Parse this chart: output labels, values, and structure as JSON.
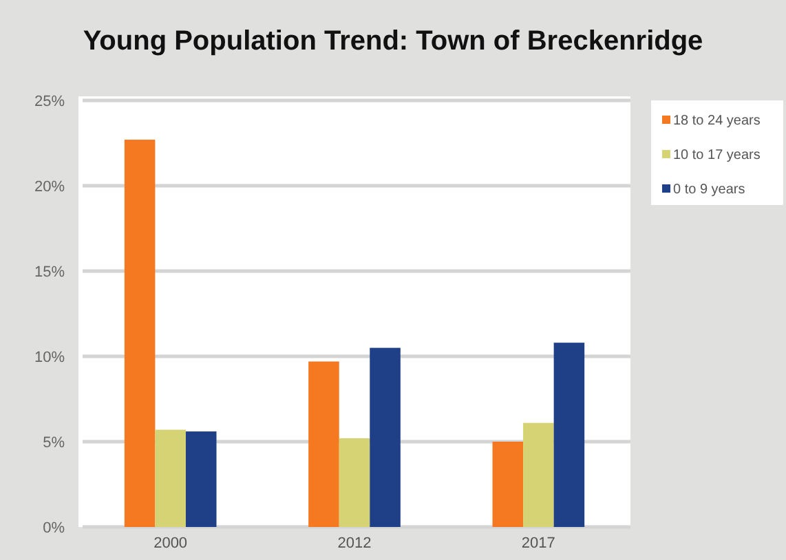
{
  "chart_data": {
    "type": "bar",
    "title": "Young Population Trend: Town of Breckenridge",
    "categories": [
      "2000",
      "2012",
      "2017"
    ],
    "series": [
      {
        "name": "18 to 24 years",
        "color": "#f47920",
        "values": [
          22.7,
          9.7,
          5.0
        ]
      },
      {
        "name": "10 to 17 years",
        "color": "#d6d374",
        "values": [
          5.7,
          5.2,
          6.1
        ]
      },
      {
        "name": "0 to 9 years",
        "color": "#1f3f87",
        "values": [
          5.6,
          10.5,
          10.8
        ]
      }
    ],
    "ylim": [
      0,
      25
    ],
    "yticks": [
      {
        "value": 0,
        "label": "0%"
      },
      {
        "value": 5,
        "label": "5%"
      },
      {
        "value": 10,
        "label": "10%"
      },
      {
        "value": 15,
        "label": "15%"
      },
      {
        "value": 20,
        "label": "20%"
      },
      {
        "value": 25,
        "label": "25%"
      }
    ],
    "grid": "y",
    "legend": "right"
  }
}
